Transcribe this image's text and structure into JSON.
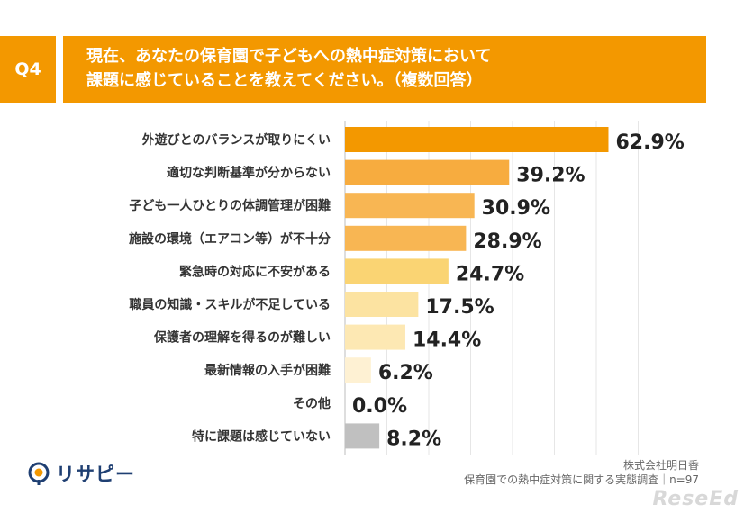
{
  "header": {
    "question_badge": "Q4",
    "title_line1": "現在、あなたの保育園で子どもへの熱中症対策において",
    "title_line2": "課題に感じていることを教えてください。（複数回答）"
  },
  "chart_data": {
    "type": "bar",
    "orientation": "horizontal",
    "categories": [
      "外遊びとのバランスが取りにくい",
      "適切な判断基準が分からない",
      "子ども一人ひとりの体調管理が困難",
      "施設の環境（エアコン等）が不十分",
      "緊急時の対応に不安がある",
      "職員の知識・スキルが不足している",
      "保護者の理解を得るのが難しい",
      "最新情報の入手が困難",
      "その他",
      "特に課題は感じていない"
    ],
    "values": [
      62.9,
      39.2,
      30.9,
      28.9,
      24.7,
      17.5,
      14.4,
      6.2,
      0.0,
      8.2
    ],
    "value_labels": [
      "62.9%",
      "39.2%",
      "30.9%",
      "28.9%",
      "24.7%",
      "17.5%",
      "14.4%",
      "6.2%",
      "0.0%",
      "8.2%"
    ],
    "bar_colors": [
      "#f39800",
      "#f7ac3f",
      "#f8b653",
      "#f8b653",
      "#fad473",
      "#fce3a1",
      "#fde8b3",
      "#fef1d3",
      "#fef1d3",
      "#c0c0c0"
    ],
    "xlim": [
      0,
      70
    ],
    "grid": true,
    "xlabel": "",
    "ylabel": ""
  },
  "footer": {
    "logo_text": "リサピー",
    "source_line1": "株式会社明日香",
    "source_line2": "保育園での熱中症対策に関する実態調査｜n=97",
    "watermark": "ReseEd"
  },
  "colors": {
    "accent": "#f39800",
    "logo_blue": "#1f3f72"
  }
}
